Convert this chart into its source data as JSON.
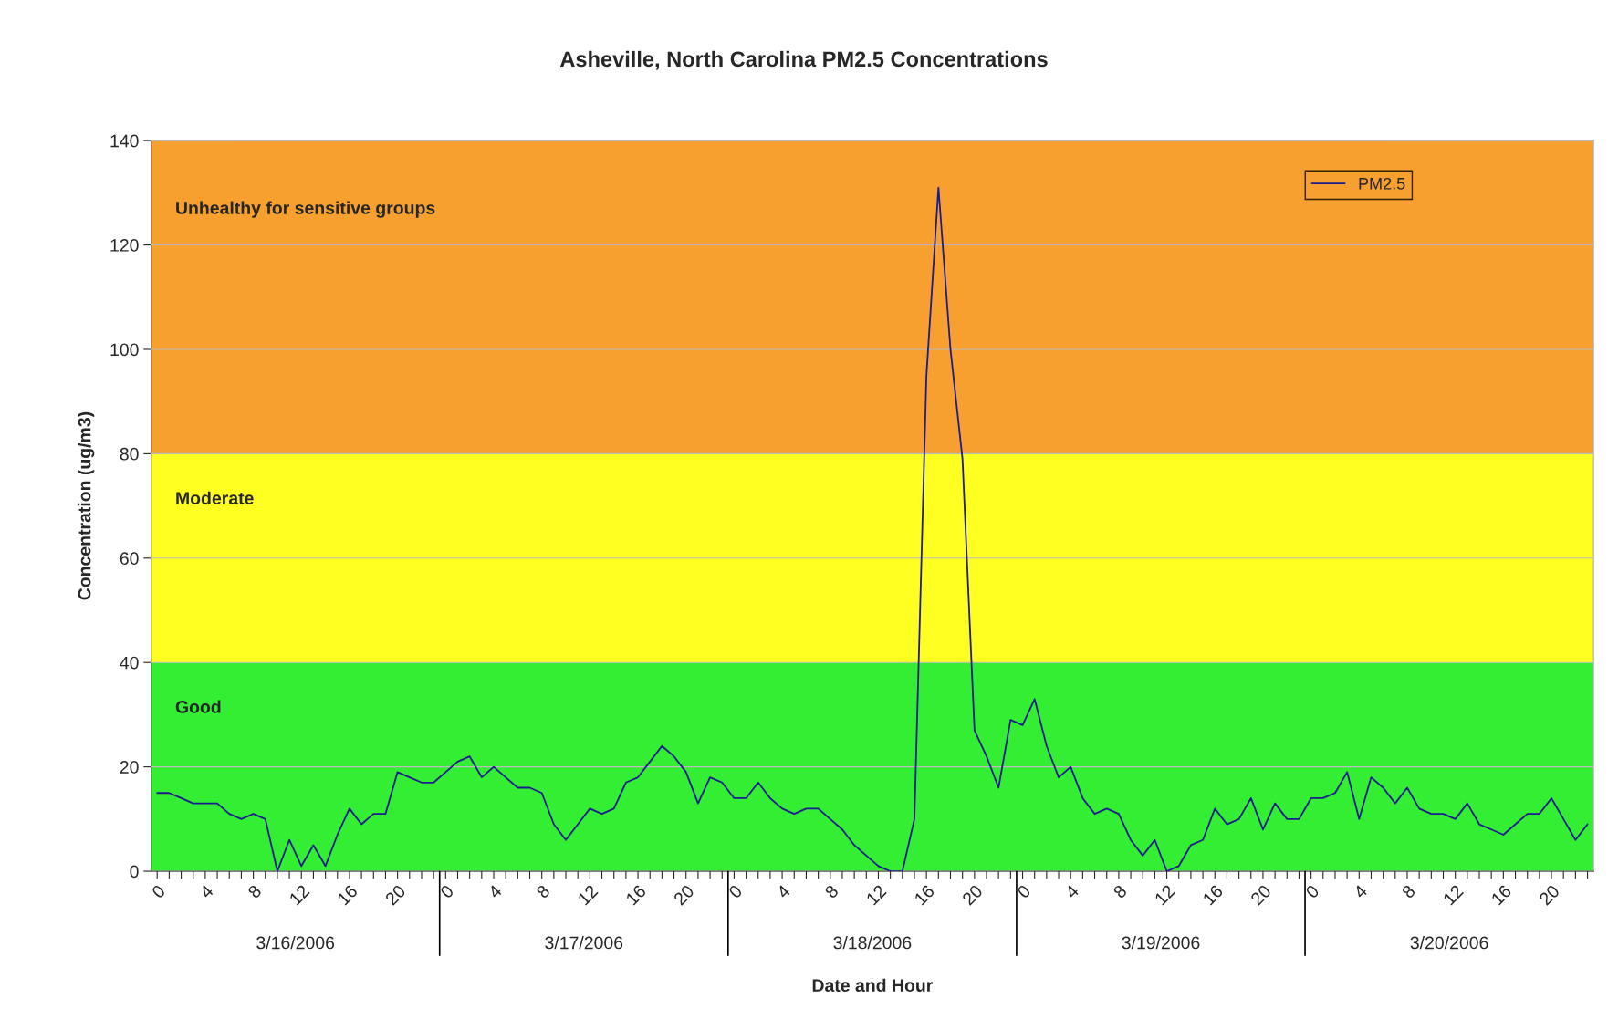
{
  "chart_data": {
    "type": "line",
    "title": "Asheville, North Carolina PM2.5 Concentrations",
    "xlabel": "Date and Hour",
    "ylabel": "Concentration (ug/m3)",
    "categories": [
      "0",
      null,
      null,
      null,
      "4",
      null,
      null,
      null,
      "8",
      null,
      null,
      null,
      "12",
      null,
      null,
      null,
      "16",
      null,
      null,
      null,
      "20",
      null,
      null,
      null,
      "0",
      null,
      null,
      null,
      "4",
      null,
      null,
      null,
      "8",
      null,
      null,
      null,
      "12",
      null,
      null,
      null,
      "16",
      null,
      null,
      null,
      "20",
      null,
      null,
      null,
      "0",
      null,
      null,
      null,
      "4",
      null,
      null,
      null,
      "8",
      null,
      null,
      null,
      "12",
      null,
      null,
      null,
      "16",
      null,
      null,
      null,
      "20",
      null,
      null,
      null,
      "0",
      null,
      null,
      null,
      "4",
      null,
      null,
      null,
      "8",
      null,
      null,
      null,
      "12",
      null,
      null,
      null,
      "16",
      null,
      null,
      null,
      "20",
      null,
      null,
      null,
      "0",
      null,
      null,
      null,
      "4",
      null,
      null,
      null,
      "8",
      null,
      null,
      null,
      "12",
      null,
      null,
      null,
      "16",
      null,
      null,
      null,
      "20",
      null,
      null,
      null
    ],
    "series": [
      {
        "name": "PM2.5",
        "color": "#1c1c8c",
        "values": [
          15,
          15,
          14,
          13,
          13,
          13,
          11,
          10,
          11,
          10,
          0,
          6,
          1,
          5,
          1,
          7,
          12,
          9,
          11,
          11,
          19,
          18,
          17,
          17,
          19,
          21,
          22,
          18,
          20,
          18,
          16,
          16,
          15,
          9,
          6,
          9,
          12,
          11,
          12,
          17,
          18,
          21,
          24,
          22,
          19,
          13,
          18,
          17,
          14,
          14,
          17,
          14,
          12,
          11,
          12,
          12,
          10,
          8,
          5,
          3,
          1,
          0,
          0,
          10,
          95,
          131,
          100,
          79,
          27,
          22,
          16,
          29,
          28,
          33,
          24,
          18,
          20,
          14,
          11,
          12,
          11,
          6,
          3,
          6,
          0,
          1,
          5,
          6,
          12,
          9,
          10,
          14,
          8,
          13,
          10,
          10,
          14,
          14,
          15,
          19,
          10,
          18,
          16,
          13,
          16,
          12,
          11,
          11,
          10,
          13,
          9,
          8,
          7,
          9,
          11,
          11,
          14,
          10,
          6,
          9
        ]
      }
    ],
    "ylim": [
      0,
      140
    ],
    "yticks": [
      0,
      20,
      40,
      60,
      80,
      100,
      120,
      140
    ],
    "bands": [
      {
        "axis": "y",
        "from": 0,
        "to": 40,
        "label": "Good",
        "color": "#33ee33"
      },
      {
        "axis": "y",
        "from": 40,
        "to": 80,
        "label": "Moderate",
        "color": "#ffff22"
      },
      {
        "axis": "y",
        "from": 80,
        "to": 140,
        "label": "Unhealthy for sensitive groups",
        "color": "#f7a030"
      }
    ],
    "annotations": [
      "3/16/2006",
      "3/17/2006",
      "3/18/2006",
      "3/19/2006",
      "3/20/2006"
    ],
    "grid": "y",
    "legend": "top right",
    "marker": "none",
    "line_style": "solid"
  }
}
